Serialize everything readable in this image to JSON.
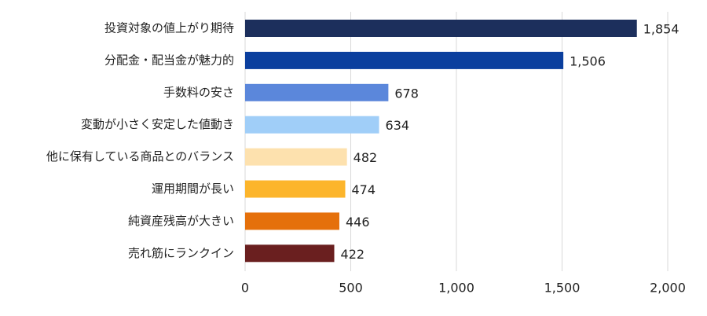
{
  "chart_data": {
    "type": "bar",
    "orientation": "horizontal",
    "categories": [
      "投資対象の値上がり期待",
      "分配金・配当金が魅力的",
      "手数料の安さ",
      "変動が小さく安定した値動き",
      "他に保有している商品とのバランス",
      "運用期間が長い",
      "純資産残高が大きい",
      "売れ筋にランクイン"
    ],
    "values": [
      1854,
      1506,
      678,
      634,
      482,
      474,
      446,
      422
    ],
    "value_labels": [
      "1,854",
      "1,506",
      "678",
      "634",
      "482",
      "474",
      "446",
      "422"
    ],
    "colors": [
      "#1c2f5c",
      "#0b3f9e",
      "#5b87db",
      "#a0cef8",
      "#fde1ae",
      "#fcb52c",
      "#e5700b",
      "#6a1f1f"
    ],
    "xlim": [
      0,
      2000
    ],
    "xticks": [
      0,
      500,
      {
        "value": 1000,
        "label": "1,000"
      },
      {
        "value": 1500,
        "label": "1,500"
      },
      {
        "value": 2000,
        "label": "2,000"
      }
    ],
    "grid": true
  }
}
